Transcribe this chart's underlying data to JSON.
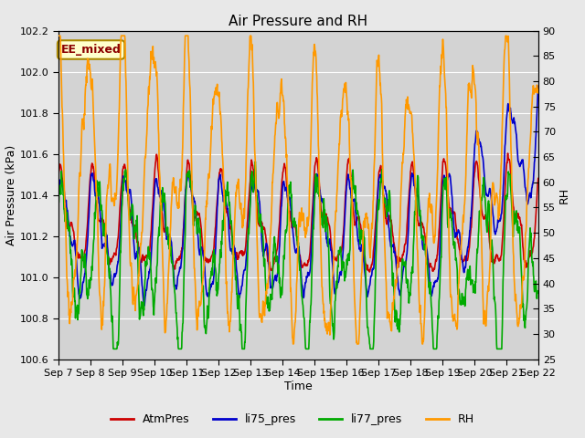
{
  "title": "Air Pressure and RH",
  "xlabel": "Time",
  "ylabel_left": "Air Pressure (kPa)",
  "ylabel_right": "RH",
  "annotation": "EE_mixed",
  "ylim_left": [
    100.6,
    102.2
  ],
  "ylim_right": [
    25,
    90
  ],
  "yticks_left": [
    100.6,
    100.8,
    101.0,
    101.2,
    101.4,
    101.6,
    101.8,
    102.0,
    102.2
  ],
  "yticks_right": [
    25,
    30,
    35,
    40,
    45,
    50,
    55,
    60,
    65,
    70,
    75,
    80,
    85,
    90
  ],
  "xtick_labels": [
    "Sep 7",
    "Sep 8",
    "Sep 9",
    "Sep 10",
    "Sep 11",
    "Sep 12",
    "Sep 13",
    "Sep 14",
    "Sep 15",
    "Sep 16",
    "Sep 17",
    "Sep 18",
    "Sep 19",
    "Sep 20",
    "Sep 21",
    "Sep 22"
  ],
  "colors": {
    "AtmPres": "#cc0000",
    "li75_pres": "#0000cc",
    "li77_pres": "#00aa00",
    "RH": "#ff9900"
  },
  "legend_labels": [
    "AtmPres",
    "li75_pres",
    "li77_pres",
    "RH"
  ],
  "fig_bg": "#e8e8e8",
  "plot_bg": "#d3d3d3",
  "annotation_bg": "#ffffcc",
  "annotation_border": "#aa8800",
  "title_fontsize": 11,
  "axis_fontsize": 9,
  "tick_fontsize": 8,
  "legend_fontsize": 9,
  "linewidth": 1.2
}
